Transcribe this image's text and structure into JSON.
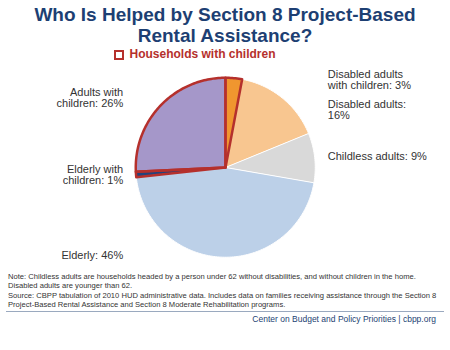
{
  "chart_data": {
    "type": "pie",
    "title": "Who Is Helped by Section 8 Project-Based Rental Assistance?",
    "categories": [
      "Disabled adults with children",
      "Disabled adults",
      "Childless adults",
      "Elderly",
      "Elderly with children",
      "Adults with children"
    ],
    "values": [
      3,
      16,
      9,
      46,
      1,
      26
    ],
    "value_labels": [
      "Disabled adults with children: 3%",
      "Disabled adults: 16%",
      "Childless adults: 9%",
      "Elderly: 46%",
      "Elderly with children: 1%",
      "Adults with children: 26%"
    ],
    "colors": [
      "#f0962f",
      "#f8c690",
      "#d9d9d9",
      "#bcd0e8",
      "#24427c",
      "#a597c9"
    ],
    "data_labels": true,
    "legend": "top",
    "groups": [
      {
        "name": "Households with children",
        "color": "#b5302c",
        "categories": [
          "Disabled adults with children",
          "Elderly with children",
          "Adults with children"
        ]
      }
    ],
    "note": "Note: Childless adults are households headed by a person under 62 without disabilities, and without children in the home. Disabled adults are younger than 62.",
    "source": "Source: CBPP tabulation of 2010 HUD administrative data. Includes data on families receiving assistance through the Section 8 Project-Based Rental Assistance and Section 8 Moderate Rehabilitation programs.",
    "credit": "Center on Budget and Policy Priorities | cbpp.org"
  }
}
